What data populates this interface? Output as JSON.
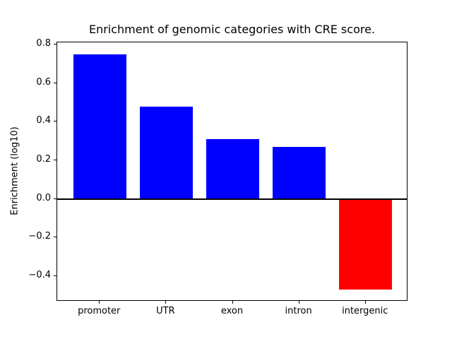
{
  "chart_data": {
    "type": "bar",
    "title": "Enrichment of genomic categories with CRE score.",
    "xlabel": "",
    "ylabel": "Enrichment (log10)",
    "categories": [
      "promoter",
      "UTR",
      "exon",
      "intron",
      "intergenic"
    ],
    "values": [
      0.75,
      0.48,
      0.31,
      0.27,
      -0.47
    ],
    "bar_colors": [
      "#0000ff",
      "#0000ff",
      "#0000ff",
      "#0000ff",
      "#ff0000"
    ],
    "positive_color": "#0000ff",
    "negative_color": "#ff0000",
    "yticks": [
      0.8,
      0.6,
      0.4,
      0.2,
      0.0,
      -0.2,
      -0.4
    ],
    "ytick_labels": [
      "0.8",
      "0.6",
      "0.4",
      "0.2",
      "0.0",
      "−0.2",
      "−0.4"
    ],
    "ylim": [
      -0.531,
      0.811
    ],
    "xlim": [
      -0.64,
      4.64
    ],
    "bar_width": 0.8,
    "zero_line": true,
    "grid": false,
    "legend": "none",
    "background_color": "#ffffff",
    "axis_color": "#000000"
  }
}
